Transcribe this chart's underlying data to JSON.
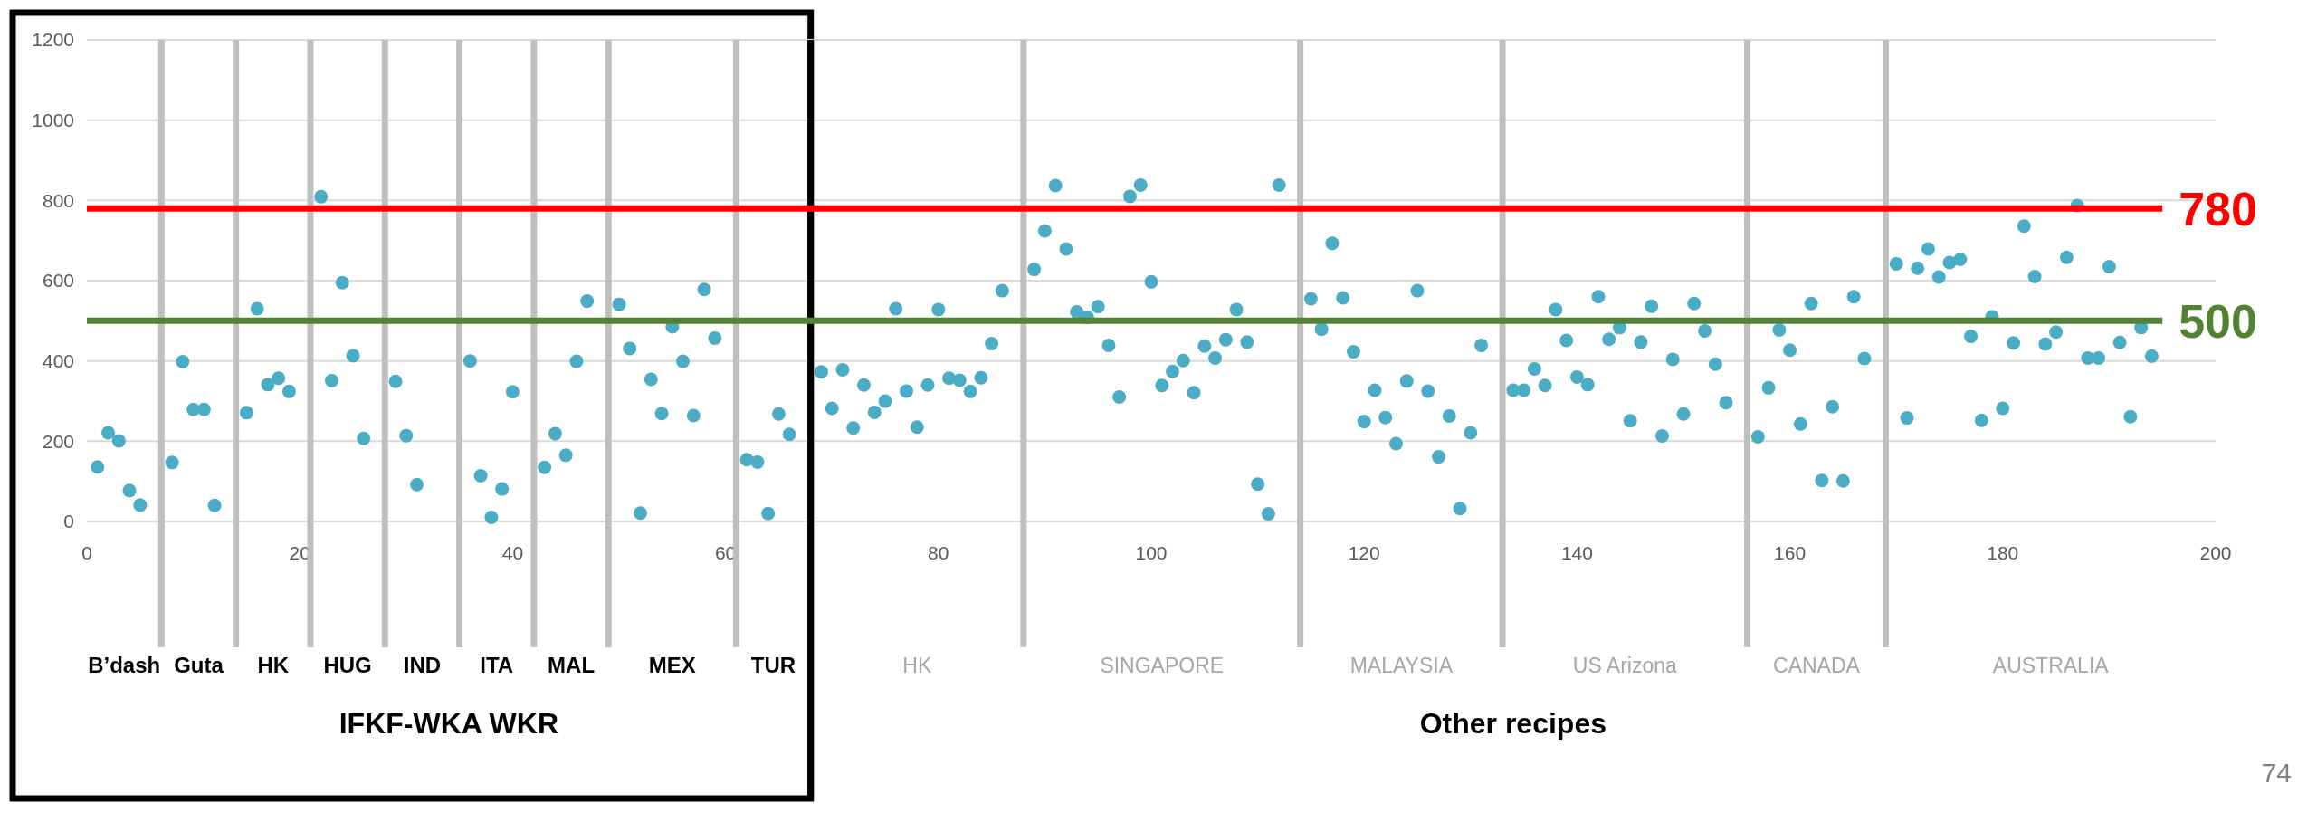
{
  "chart_data": {
    "type": "scatter",
    "x": [
      1,
      2,
      3,
      4,
      5,
      8,
      9,
      10,
      11,
      12,
      15,
      16,
      17,
      18,
      19,
      22,
      23,
      24,
      25,
      26,
      29,
      30,
      31,
      36,
      37,
      38,
      39,
      40,
      43,
      44,
      45,
      46,
      47,
      50,
      51,
      52,
      53,
      54,
      55,
      56,
      57,
      58,
      59,
      62,
      63,
      64,
      65,
      66,
      69,
      70,
      71,
      72,
      73,
      74,
      75,
      76,
      77,
      78,
      79,
      80,
      81,
      82,
      83,
      84,
      85,
      86,
      89,
      90,
      91,
      92,
      93,
      94,
      95,
      96,
      97,
      98,
      99,
      100,
      101,
      102,
      103,
      104,
      105,
      106,
      107,
      108,
      109,
      110,
      111,
      112,
      115,
      116,
      117,
      118,
      119,
      120,
      121,
      122,
      123,
      124,
      125,
      126,
      127,
      128,
      129,
      130,
      131,
      134,
      135,
      136,
      137,
      138,
      139,
      140,
      141,
      142,
      143,
      144,
      145,
      146,
      147,
      148,
      149,
      150,
      151,
      152,
      153,
      154,
      157,
      158,
      159,
      160,
      161,
      162,
      163,
      164,
      165,
      166,
      167,
      170,
      171,
      172,
      173,
      174,
      175,
      176,
      177,
      178,
      179,
      180,
      181,
      182,
      183,
      184,
      185,
      186,
      187,
      188,
      189,
      190,
      191,
      192,
      193,
      194
    ],
    "series": [
      {
        "color": "#4bacc6",
        "values": [
          136,
          221,
          201,
          77,
          41,
          147,
          398,
          279,
          279,
          40,
          271,
          530,
          341,
          357,
          324,
          809,
          351,
          595,
          413,
          207,
          349,
          214,
          92,
          400,
          114,
          10,
          81,
          323,
          135,
          219,
          165,
          399,
          549,
          541,
          431,
          21,
          354,
          269,
          485,
          399,
          264,
          578,
          457,
          154,
          148,
          20,
          268,
          217,
          373,
          282,
          378,
          233,
          340,
          272,
          300,
          530,
          325,
          235,
          340,
          528,
          357,
          352,
          324,
          358,
          443,
          575,
          628,
          724,
          837,
          679,
          522,
          508,
          535,
          439,
          310,
          810,
          838,
          597,
          339,
          374,
          401,
          321,
          437,
          407,
          453,
          528,
          447,
          93,
          19,
          838,
          555,
          479,
          693,
          557,
          423,
          249,
          327,
          259,
          194,
          350,
          575,
          325,
          161,
          263,
          32,
          221,
          439,
          327,
          327,
          380,
          339,
          528,
          451,
          360,
          341,
          560,
          454,
          483,
          251,
          447,
          536,
          213,
          404,
          268,
          543,
          475,
          392,
          296,
          211,
          333,
          477,
          427,
          243,
          543,
          102,
          286,
          101,
          560,
          406,
          642,
          258,
          631,
          679,
          609,
          645,
          653,
          461,
          252,
          510,
          282,
          445,
          736,
          610,
          442,
          472,
          658,
          787,
          407,
          407,
          635,
          446,
          261,
          483,
          412
        ]
      }
    ],
    "xlim": [
      0,
      200
    ],
    "xticks": [
      0,
      20,
      40,
      60,
      80,
      100,
      120,
      140,
      160,
      180,
      200
    ],
    "ylim": [
      0,
      1200
    ],
    "yticks": [
      0,
      200,
      400,
      600,
      800,
      1000,
      1200
    ],
    "grid": "y",
    "marker": "circle",
    "ref_lines": [
      {
        "axis": "y",
        "value": 780,
        "label": "780",
        "color": "#ff0000"
      },
      {
        "axis": "y",
        "value": 500,
        "label": "500",
        "color": "#548235"
      },
      {
        "axis": "x",
        "value": 7,
        "color": "#bfbfbf"
      },
      {
        "axis": "x",
        "value": 14,
        "color": "#bfbfbf"
      },
      {
        "axis": "x",
        "value": 21,
        "color": "#bfbfbf"
      },
      {
        "axis": "x",
        "value": 28,
        "color": "#bfbfbf"
      },
      {
        "axis": "x",
        "value": 35,
        "color": "#bfbfbf"
      },
      {
        "axis": "x",
        "value": 42,
        "color": "#bfbfbf"
      },
      {
        "axis": "x",
        "value": 49,
        "color": "#bfbfbf"
      },
      {
        "axis": "x",
        "value": 61,
        "color": "#bfbfbf"
      },
      {
        "axis": "x",
        "value": 68,
        "color": "#000000"
      },
      {
        "axis": "x",
        "value": 88,
        "color": "#bfbfbf"
      },
      {
        "axis": "x",
        "value": 114,
        "color": "#bfbfbf"
      },
      {
        "axis": "x",
        "value": 133,
        "color": "#bfbfbf"
      },
      {
        "axis": "x",
        "value": 156,
        "color": "#bfbfbf"
      },
      {
        "axis": "x",
        "value": 169,
        "color": "#bfbfbf"
      }
    ],
    "annotations": [
      "B’dash",
      "Guta",
      "HK",
      "HUG",
      "IND",
      "ITA",
      "MAL",
      "MEX",
      "TUR",
      "HK",
      "SINGAPORE",
      "MALAYSIA",
      "US Arizona",
      "CANADA",
      "AUSTRALIA",
      "IFKF-WKA WKR",
      "Other recipes",
      "74"
    ]
  }
}
